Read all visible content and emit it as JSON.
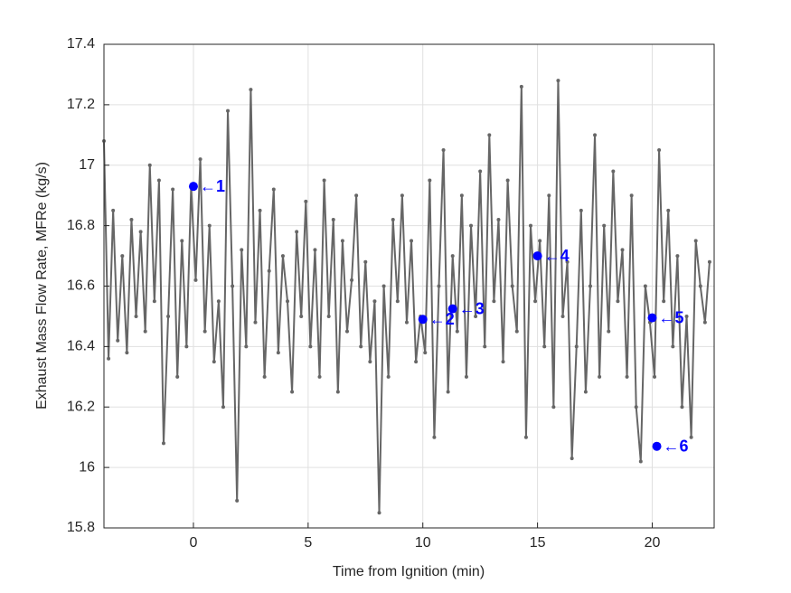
{
  "chart_data": {
    "type": "line",
    "xlabel": "Time from Ignition (min)",
    "ylabel": "Exhaust Mass Flow Rate, MFRe (kg/s)",
    "color": "#666666",
    "grid": true,
    "xlim": [
      -3.9,
      22.7
    ],
    "ylim": [
      15.8,
      17.4
    ],
    "xticks": [
      0,
      5,
      10,
      15,
      20
    ],
    "yticks": [
      15.8,
      16,
      16.2,
      16.4,
      16.6,
      16.8,
      17,
      17.2,
      17.4
    ],
    "x": [
      -3.9,
      -3.7,
      -3.5,
      -3.3,
      -3.1,
      -2.9,
      -2.7,
      -2.5,
      -2.3,
      -2.1,
      -1.9,
      -1.7,
      -1.5,
      -1.3,
      -1.1,
      -0.9,
      -0.7,
      -0.5,
      -0.3,
      -0.1,
      0.1,
      0.3,
      0.5,
      0.7,
      0.9,
      1.1,
      1.3,
      1.5,
      1.7,
      1.9,
      2.1,
      2.3,
      2.5,
      2.7,
      2.9,
      3.1,
      3.3,
      3.5,
      3.7,
      3.9,
      4.1,
      4.3,
      4.5,
      4.7,
      4.9,
      5.1,
      5.3,
      5.5,
      5.7,
      5.9,
      6.1,
      6.3,
      6.5,
      6.7,
      6.9,
      7.1,
      7.3,
      7.5,
      7.7,
      7.9,
      8.1,
      8.3,
      8.5,
      8.7,
      8.9,
      9.1,
      9.3,
      9.5,
      9.7,
      9.9,
      10.1,
      10.3,
      10.5,
      10.7,
      10.9,
      11.1,
      11.3,
      11.5,
      11.7,
      11.9,
      12.1,
      12.3,
      12.5,
      12.7,
      12.9,
      13.1,
      13.3,
      13.5,
      13.7,
      13.9,
      14.1,
      14.3,
      14.5,
      14.7,
      14.9,
      15.1,
      15.3,
      15.5,
      15.7,
      15.9,
      16.1,
      16.3,
      16.5,
      16.7,
      16.9,
      17.1,
      17.3,
      17.5,
      17.7,
      17.9,
      18.1,
      18.3,
      18.5,
      18.7,
      18.9,
      19.1,
      19.3,
      19.5,
      19.7,
      19.9,
      20.1,
      20.3,
      20.5,
      20.7,
      20.9,
      21.1,
      21.3,
      21.5,
      21.7,
      21.9,
      22.1,
      22.3,
      22.5
    ],
    "values": [
      17.08,
      16.36,
      16.85,
      16.42,
      16.7,
      16.38,
      16.82,
      16.5,
      16.78,
      16.45,
      17.0,
      16.55,
      16.95,
      16.08,
      16.5,
      16.92,
      16.3,
      16.75,
      16.4,
      16.93,
      16.62,
      17.02,
      16.45,
      16.8,
      16.35,
      16.55,
      16.2,
      17.18,
      16.6,
      15.89,
      16.72,
      16.4,
      17.25,
      16.48,
      16.85,
      16.3,
      16.65,
      16.92,
      16.38,
      16.7,
      16.55,
      16.25,
      16.78,
      16.5,
      16.88,
      16.4,
      16.72,
      16.3,
      16.95,
      16.5,
      16.82,
      16.25,
      16.75,
      16.45,
      16.62,
      16.9,
      16.4,
      16.68,
      16.35,
      16.55,
      15.85,
      16.6,
      16.3,
      16.82,
      16.55,
      16.9,
      16.48,
      16.75,
      16.35,
      16.5,
      16.38,
      16.95,
      16.1,
      16.6,
      17.05,
      16.25,
      16.7,
      16.45,
      16.9,
      16.3,
      16.8,
      16.5,
      16.98,
      16.4,
      17.1,
      16.55,
      16.82,
      16.35,
      16.95,
      16.6,
      16.45,
      17.26,
      16.1,
      16.8,
      16.55,
      16.75,
      16.4,
      16.9,
      16.2,
      17.28,
      16.5,
      16.68,
      16.03,
      16.4,
      16.85,
      16.25,
      16.6,
      17.1,
      16.3,
      16.8,
      16.45,
      16.98,
      16.55,
      16.72,
      16.3,
      16.9,
      16.2,
      16.02,
      16.6,
      16.48,
      16.3,
      17.05,
      16.55,
      16.85,
      16.4,
      16.7,
      16.2,
      16.5,
      16.1,
      16.75,
      16.6,
      16.48,
      16.68
    ],
    "highlights": {
      "color": "#0000ff",
      "x": [
        0,
        10.0,
        11.3,
        15.0,
        20.0,
        20.2
      ],
      "values": [
        16.93,
        16.49,
        16.525,
        16.7,
        16.495,
        16.07
      ],
      "labels": [
        "←1",
        "←2",
        "←3",
        "←4",
        "←5",
        "←6"
      ]
    }
  }
}
